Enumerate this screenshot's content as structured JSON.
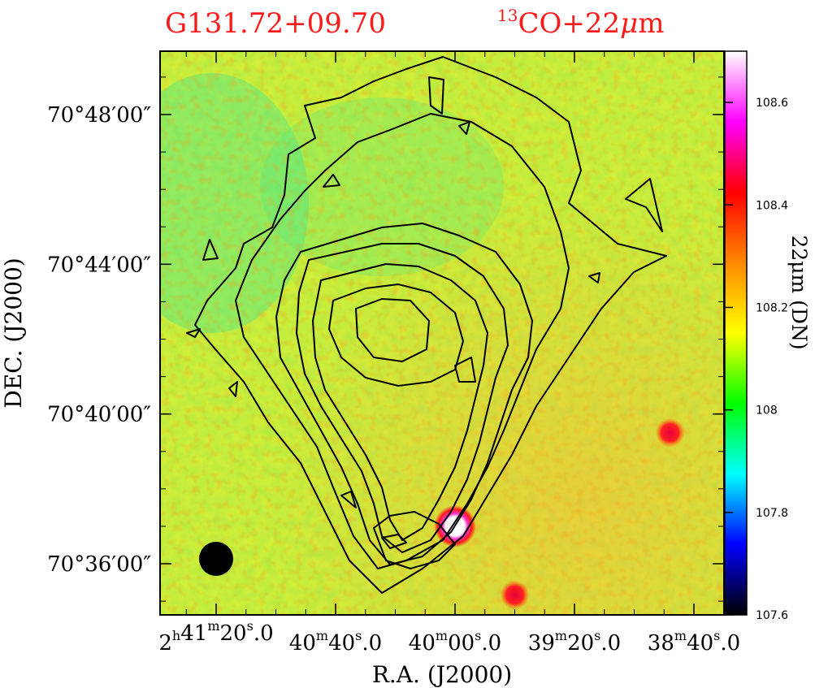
{
  "chart_data": {
    "type": "heatmap",
    "title_left": "G131.72+09.70",
    "title_right": {
      "sup": "13",
      "main": "CO+22",
      "greek": "μ",
      "tail": "m"
    },
    "xlabel": "R.A.  (J2000)",
    "ylabel": "DEC.  (J2000)",
    "x_ticks": [
      {
        "h": "2",
        "m": "41",
        "s": "20",
        "frac": ".0"
      },
      {
        "h": "",
        "m": "40",
        "s": "40",
        "frac": ".0"
      },
      {
        "h": "",
        "m": "40",
        "s": "00",
        "frac": ".0"
      },
      {
        "h": "",
        "m": "39",
        "s": "20",
        "frac": ".0"
      },
      {
        "h": "",
        "m": "38",
        "s": "40",
        "frac": ".0"
      }
    ],
    "y_ticks": [
      "70°48′00″",
      "70°44′00″",
      "70°40′00″",
      "70°36′00″"
    ],
    "colorbar": {
      "label": "22μm (DN)",
      "min": 107.6,
      "max": 108.7,
      "ticks": [
        "108.6",
        "108.4",
        "108.2",
        "108",
        "107.8",
        "107.6"
      ],
      "tick_values": [
        108.6,
        108.4,
        108.2,
        108.0,
        107.8,
        107.6
      ],
      "colormap": [
        "#000000",
        "#0000ff",
        "#00ffff",
        "#00ff00",
        "#ffff00",
        "#ff8800",
        "#ff0000",
        "#ff00ff",
        "#ffffff"
      ]
    },
    "background_level": 108.15,
    "sources": [
      {
        "name": "bright point source",
        "ra": "02:40:00",
        "dec": "70:37:00",
        "peak": 108.7
      },
      {
        "name": "source east",
        "ra": "02:38:48",
        "dec": "70:39:30",
        "peak": 108.45
      },
      {
        "name": "source south",
        "ra": "02:39:40",
        "dec": "70:35:10",
        "peak": 108.45
      }
    ],
    "contours": "13CO integrated intensity (black lines)",
    "beam": "filled circle, lower left"
  },
  "colors": {
    "title": "#ff1a1a",
    "contour": "#000000",
    "beam": "#000000"
  }
}
